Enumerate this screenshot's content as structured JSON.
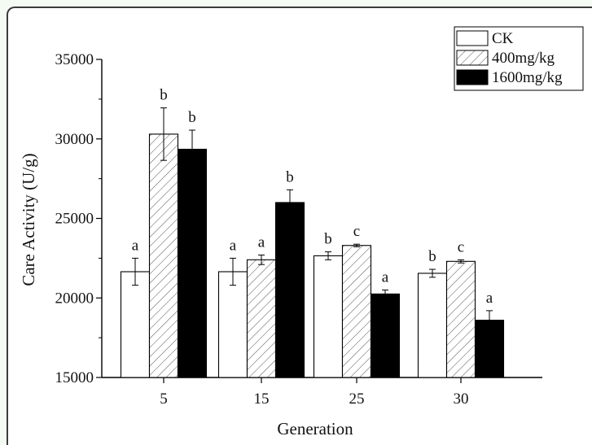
{
  "chart_data": {
    "type": "bar",
    "title": "",
    "xlabel": "Generation",
    "ylabel": "Care Activity (U/g)",
    "categories": [
      "5",
      "15",
      "25",
      "30"
    ],
    "ylim": [
      15000,
      35000
    ],
    "yticks": [
      15000,
      20000,
      25000,
      30000,
      35000
    ],
    "series": [
      {
        "name": "CK",
        "style": "open",
        "values": [
          21650,
          21650,
          22650,
          21550
        ],
        "errors": [
          850,
          850,
          250,
          250
        ],
        "sig_labels": [
          "a",
          "a",
          "b",
          "b"
        ]
      },
      {
        "name": "400mg/kg",
        "style": "hatched",
        "values": [
          30300,
          22400,
          23300,
          22300
        ],
        "errors": [
          1650,
          300,
          80,
          100
        ],
        "sig_labels": [
          "b",
          "a",
          "c",
          "c"
        ]
      },
      {
        "name": "1600mg/kg",
        "style": "solid",
        "values": [
          29350,
          26000,
          20250,
          18600
        ],
        "errors": [
          1200,
          800,
          250,
          600
        ],
        "sig_labels": [
          "b",
          "b",
          "a",
          "a"
        ]
      }
    ],
    "grid": false,
    "legend_position": "top-right",
    "colors": {
      "bar_fill_solid": "#000000",
      "bar_outline": "#000000",
      "hatch": "#555555"
    }
  }
}
